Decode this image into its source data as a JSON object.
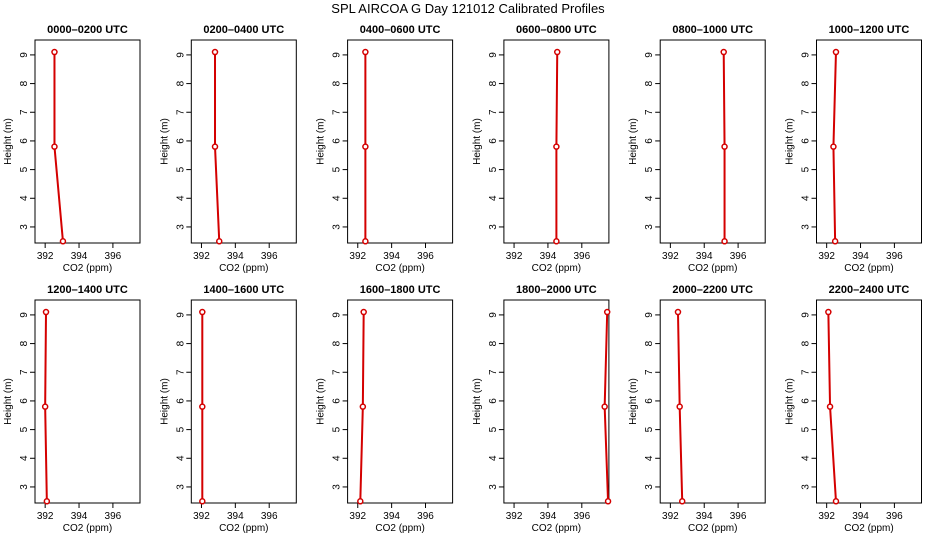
{
  "title": "SPL AIRCOA G  Day 121012  Calibrated Profiles",
  "chart_data": [
    {
      "type": "line",
      "title": "0000–0200 UTC",
      "xlabel": "CO2 (ppm)",
      "ylabel": "Height (m)",
      "color": "#d40000",
      "xlim": [
        391.4,
        397.6
      ],
      "xticks": [
        392,
        394,
        396
      ],
      "ylim": [
        2.44,
        9.52
      ],
      "yticks": [
        3,
        4,
        5,
        6,
        7,
        8,
        9
      ],
      "x": [
        392.55,
        392.55,
        393.05
      ],
      "y": [
        9.1,
        5.8,
        2.5
      ]
    },
    {
      "type": "line",
      "title": "0200–0400 UTC",
      "xlabel": "CO2 (ppm)",
      "ylabel": "Height (m)",
      "color": "#d40000",
      "xlim": [
        391.4,
        397.6
      ],
      "xticks": [
        392,
        394,
        396
      ],
      "ylim": [
        2.44,
        9.52
      ],
      "yticks": [
        3,
        4,
        5,
        6,
        7,
        8,
        9
      ],
      "x": [
        392.8,
        392.8,
        393.05
      ],
      "y": [
        9.1,
        5.8,
        2.5
      ]
    },
    {
      "type": "line",
      "title": "0400–0600 UTC",
      "xlabel": "CO2 (ppm)",
      "ylabel": "Height (m)",
      "color": "#d40000",
      "xlim": [
        391.4,
        397.6
      ],
      "xticks": [
        392,
        394,
        396
      ],
      "ylim": [
        2.44,
        9.52
      ],
      "yticks": [
        3,
        4,
        5,
        6,
        7,
        8,
        9
      ],
      "x": [
        392.45,
        392.45,
        392.45
      ],
      "y": [
        9.1,
        5.8,
        2.5
      ]
    },
    {
      "type": "line",
      "title": "0600–0800 UTC",
      "xlabel": "CO2 (ppm)",
      "ylabel": "Height (m)",
      "color": "#d40000",
      "xlim": [
        391.4,
        397.6
      ],
      "xticks": [
        392,
        394,
        396
      ],
      "ylim": [
        2.44,
        9.52
      ],
      "yticks": [
        3,
        4,
        5,
        6,
        7,
        8,
        9
      ],
      "x": [
        394.55,
        394.5,
        394.5
      ],
      "y": [
        9.1,
        5.8,
        2.5
      ]
    },
    {
      "type": "line",
      "title": "0800–1000 UTC",
      "xlabel": "CO2 (ppm)",
      "ylabel": "Height (m)",
      "color": "#d40000",
      "xlim": [
        391.4,
        397.6
      ],
      "xticks": [
        392,
        394,
        396
      ],
      "ylim": [
        2.44,
        9.52
      ],
      "yticks": [
        3,
        4,
        5,
        6,
        7,
        8,
        9
      ],
      "x": [
        395.15,
        395.2,
        395.2
      ],
      "y": [
        9.1,
        5.8,
        2.5
      ]
    },
    {
      "type": "line",
      "title": "1000–1200 UTC",
      "xlabel": "CO2 (ppm)",
      "ylabel": "Height (m)",
      "color": "#d40000",
      "xlim": [
        391.4,
        397.6
      ],
      "xticks": [
        392,
        394,
        396
      ],
      "ylim": [
        2.44,
        9.52
      ],
      "yticks": [
        3,
        4,
        5,
        6,
        7,
        8,
        9
      ],
      "x": [
        392.55,
        392.4,
        392.5
      ],
      "y": [
        9.1,
        5.8,
        2.5
      ]
    },
    {
      "type": "line",
      "title": "1200–1400 UTC",
      "xlabel": "CO2 (ppm)",
      "ylabel": "Height (m)",
      "color": "#d40000",
      "xlim": [
        391.4,
        397.6
      ],
      "xticks": [
        392,
        394,
        396
      ],
      "ylim": [
        2.44,
        9.52
      ],
      "yticks": [
        3,
        4,
        5,
        6,
        7,
        8,
        9
      ],
      "x": [
        392.05,
        392.0,
        392.1
      ],
      "y": [
        9.1,
        5.8,
        2.5
      ]
    },
    {
      "type": "line",
      "title": "1400–1600 UTC",
      "xlabel": "CO2 (ppm)",
      "ylabel": "Height (m)",
      "color": "#d40000",
      "xlim": [
        391.4,
        397.6
      ],
      "xticks": [
        392,
        394,
        396
      ],
      "ylim": [
        2.44,
        9.52
      ],
      "yticks": [
        3,
        4,
        5,
        6,
        7,
        8,
        9
      ],
      "x": [
        392.05,
        392.05,
        392.05
      ],
      "y": [
        9.1,
        5.8,
        2.5
      ]
    },
    {
      "type": "line",
      "title": "1600–1800 UTC",
      "xlabel": "CO2 (ppm)",
      "ylabel": "Height (m)",
      "color": "#d40000",
      "xlim": [
        391.4,
        397.6
      ],
      "xticks": [
        392,
        394,
        396
      ],
      "ylim": [
        2.44,
        9.52
      ],
      "yticks": [
        3,
        4,
        5,
        6,
        7,
        8,
        9
      ],
      "x": [
        392.35,
        392.3,
        392.15
      ],
      "y": [
        9.1,
        5.8,
        2.5
      ]
    },
    {
      "type": "line",
      "title": "1800–2000 UTC",
      "xlabel": "CO2 (ppm)",
      "ylabel": "Height (m)",
      "color": "#d40000",
      "xlim": [
        391.4,
        397.6
      ],
      "xticks": [
        392,
        394,
        396
      ],
      "ylim": [
        2.44,
        9.52
      ],
      "yticks": [
        3,
        4,
        5,
        6,
        7,
        8,
        9
      ],
      "x": [
        397.5,
        397.35,
        397.55
      ],
      "y": [
        9.1,
        5.8,
        2.5
      ]
    },
    {
      "type": "line",
      "title": "2000–2200 UTC",
      "xlabel": "CO2 (ppm)",
      "ylabel": "Height (m)",
      "color": "#d40000",
      "xlim": [
        391.4,
        397.6
      ],
      "xticks": [
        392,
        394,
        396
      ],
      "ylim": [
        2.44,
        9.52
      ],
      "yticks": [
        3,
        4,
        5,
        6,
        7,
        8,
        9
      ],
      "x": [
        392.45,
        392.55,
        392.7
      ],
      "y": [
        9.1,
        5.8,
        2.5
      ]
    },
    {
      "type": "line",
      "title": "2200–2400 UTC",
      "xlabel": "CO2 (ppm)",
      "ylabel": "Height (m)",
      "color": "#d40000",
      "xlim": [
        391.4,
        397.6
      ],
      "xticks": [
        392,
        394,
        396
      ],
      "ylim": [
        2.44,
        9.52
      ],
      "yticks": [
        3,
        4,
        5,
        6,
        7,
        8,
        9
      ],
      "x": [
        392.1,
        392.2,
        392.55
      ],
      "y": [
        9.1,
        5.8,
        2.5
      ]
    }
  ]
}
